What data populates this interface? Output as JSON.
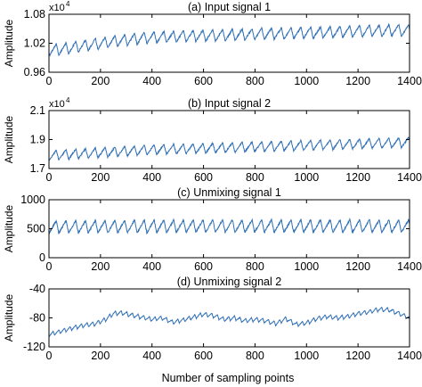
{
  "chart_data": [
    {
      "type": "line",
      "title": "(a) Input signal 1",
      "xlabel": "",
      "ylabel": "Amplitude",
      "exponent_label": "x10",
      "exponent_power": "4",
      "xlim": [
        0,
        1400
      ],
      "ylim": [
        0.96,
        1.08
      ],
      "xticks": [
        0,
        200,
        400,
        600,
        800,
        1000,
        1200,
        1400
      ],
      "xtick_labels": [
        "0",
        "200",
        "400",
        "600",
        "800",
        "1000",
        "1200",
        "1400"
      ],
      "yticks": [
        0.96,
        1.02,
        1.08
      ],
      "ytick_labels": [
        "0.96",
        "1.02",
        "1.08"
      ],
      "series": [
        {
          "x": [
            0,
            50,
            100,
            150,
            200,
            250,
            300,
            350,
            400,
            450,
            500,
            550,
            600,
            650,
            700,
            750,
            800,
            850,
            900,
            950,
            1000,
            1050,
            1100,
            1150,
            1200,
            1250,
            1300,
            1350,
            1400
          ],
          "values": [
            1.005,
            1.008,
            1.012,
            1.016,
            1.02,
            1.024,
            1.027,
            1.03,
            1.032,
            1.033,
            1.034,
            1.035,
            1.036,
            1.036,
            1.037,
            1.038,
            1.039,
            1.04,
            1.04,
            1.041,
            1.042,
            1.042,
            1.043,
            1.044,
            1.045,
            1.046,
            1.046,
            1.047,
            1.046
          ],
          "oscillation": 0.012,
          "period": 38
        }
      ]
    },
    {
      "type": "line",
      "title": "(b) Input signal 2",
      "xlabel": "",
      "ylabel": "Amplitude",
      "exponent_label": "x10",
      "exponent_power": "4",
      "xlim": [
        0,
        1400
      ],
      "ylim": [
        1.7,
        2.1
      ],
      "xticks": [
        0,
        200,
        400,
        600,
        800,
        1000,
        1200,
        1400
      ],
      "xtick_labels": [
        "0",
        "200",
        "400",
        "600",
        "800",
        "1000",
        "1200",
        "1400"
      ],
      "yticks": [
        1.7,
        1.9,
        2.1
      ],
      "ytick_labels": [
        "1.7",
        "1.9",
        "2.1"
      ],
      "series": [
        {
          "x": [
            0,
            100,
            200,
            300,
            400,
            500,
            600,
            700,
            800,
            900,
            1000,
            1100,
            1200,
            1300,
            1400
          ],
          "values": [
            1.79,
            1.8,
            1.81,
            1.82,
            1.83,
            1.835,
            1.84,
            1.845,
            1.85,
            1.855,
            1.86,
            1.865,
            1.87,
            1.875,
            1.88
          ],
          "oscillation": 0.035,
          "period": 38
        }
      ]
    },
    {
      "type": "line",
      "title": "(c) Unmixing signal 1",
      "xlabel": "",
      "ylabel": "Amplitude",
      "xlim": [
        0,
        1400
      ],
      "ylim": [
        0,
        1000
      ],
      "xticks": [
        0,
        200,
        400,
        600,
        800,
        1000,
        1200,
        1400
      ],
      "xtick_labels": [
        "0",
        "200",
        "400",
        "600",
        "800",
        "1000",
        "1200",
        "1400"
      ],
      "yticks": [
        0,
        500,
        1000
      ],
      "ytick_labels": [
        "0",
        "500",
        "1000"
      ],
      "series": [
        {
          "x": [
            0,
            200,
            400,
            600,
            800,
            1000,
            1200,
            1400
          ],
          "values": [
            530,
            535,
            540,
            545,
            545,
            545,
            545,
            545
          ],
          "oscillation": 110,
          "period": 38
        }
      ]
    },
    {
      "type": "line",
      "title": "(d) Unmixing signal 2",
      "xlabel": "Number of sampling points",
      "ylabel": "Amplitude",
      "xlim": [
        0,
        1400
      ],
      "ylim": [
        -120,
        -40
      ],
      "xticks": [
        0,
        200,
        400,
        600,
        800,
        1000,
        1200,
        1400
      ],
      "xtick_labels": [
        "0",
        "200",
        "400",
        "600",
        "800",
        "1000",
        "1200",
        "1400"
      ],
      "yticks": [
        -120,
        -80,
        -40
      ],
      "ytick_labels": [
        "-120",
        "-80",
        "-40"
      ],
      "series": [
        {
          "x": [
            0,
            30,
            60,
            100,
            140,
            180,
            220,
            250,
            280,
            320,
            360,
            400,
            440,
            480,
            520,
            560,
            600,
            640,
            680,
            720,
            760,
            800,
            840,
            880,
            920,
            960,
            1000,
            1040,
            1080,
            1120,
            1160,
            1200,
            1240,
            1280,
            1320,
            1360,
            1400
          ],
          "values": [
            -103,
            -100,
            -97,
            -93,
            -90,
            -88,
            -82,
            -74,
            -73,
            -76,
            -79,
            -82,
            -80,
            -86,
            -83,
            -79,
            -75,
            -77,
            -82,
            -80,
            -84,
            -82,
            -84,
            -88,
            -81,
            -89,
            -87,
            -81,
            -78,
            -80,
            -78,
            -74,
            -72,
            -68,
            -69,
            -74,
            -80
          ],
          "oscillation": 3,
          "period": 22
        }
      ]
    }
  ]
}
